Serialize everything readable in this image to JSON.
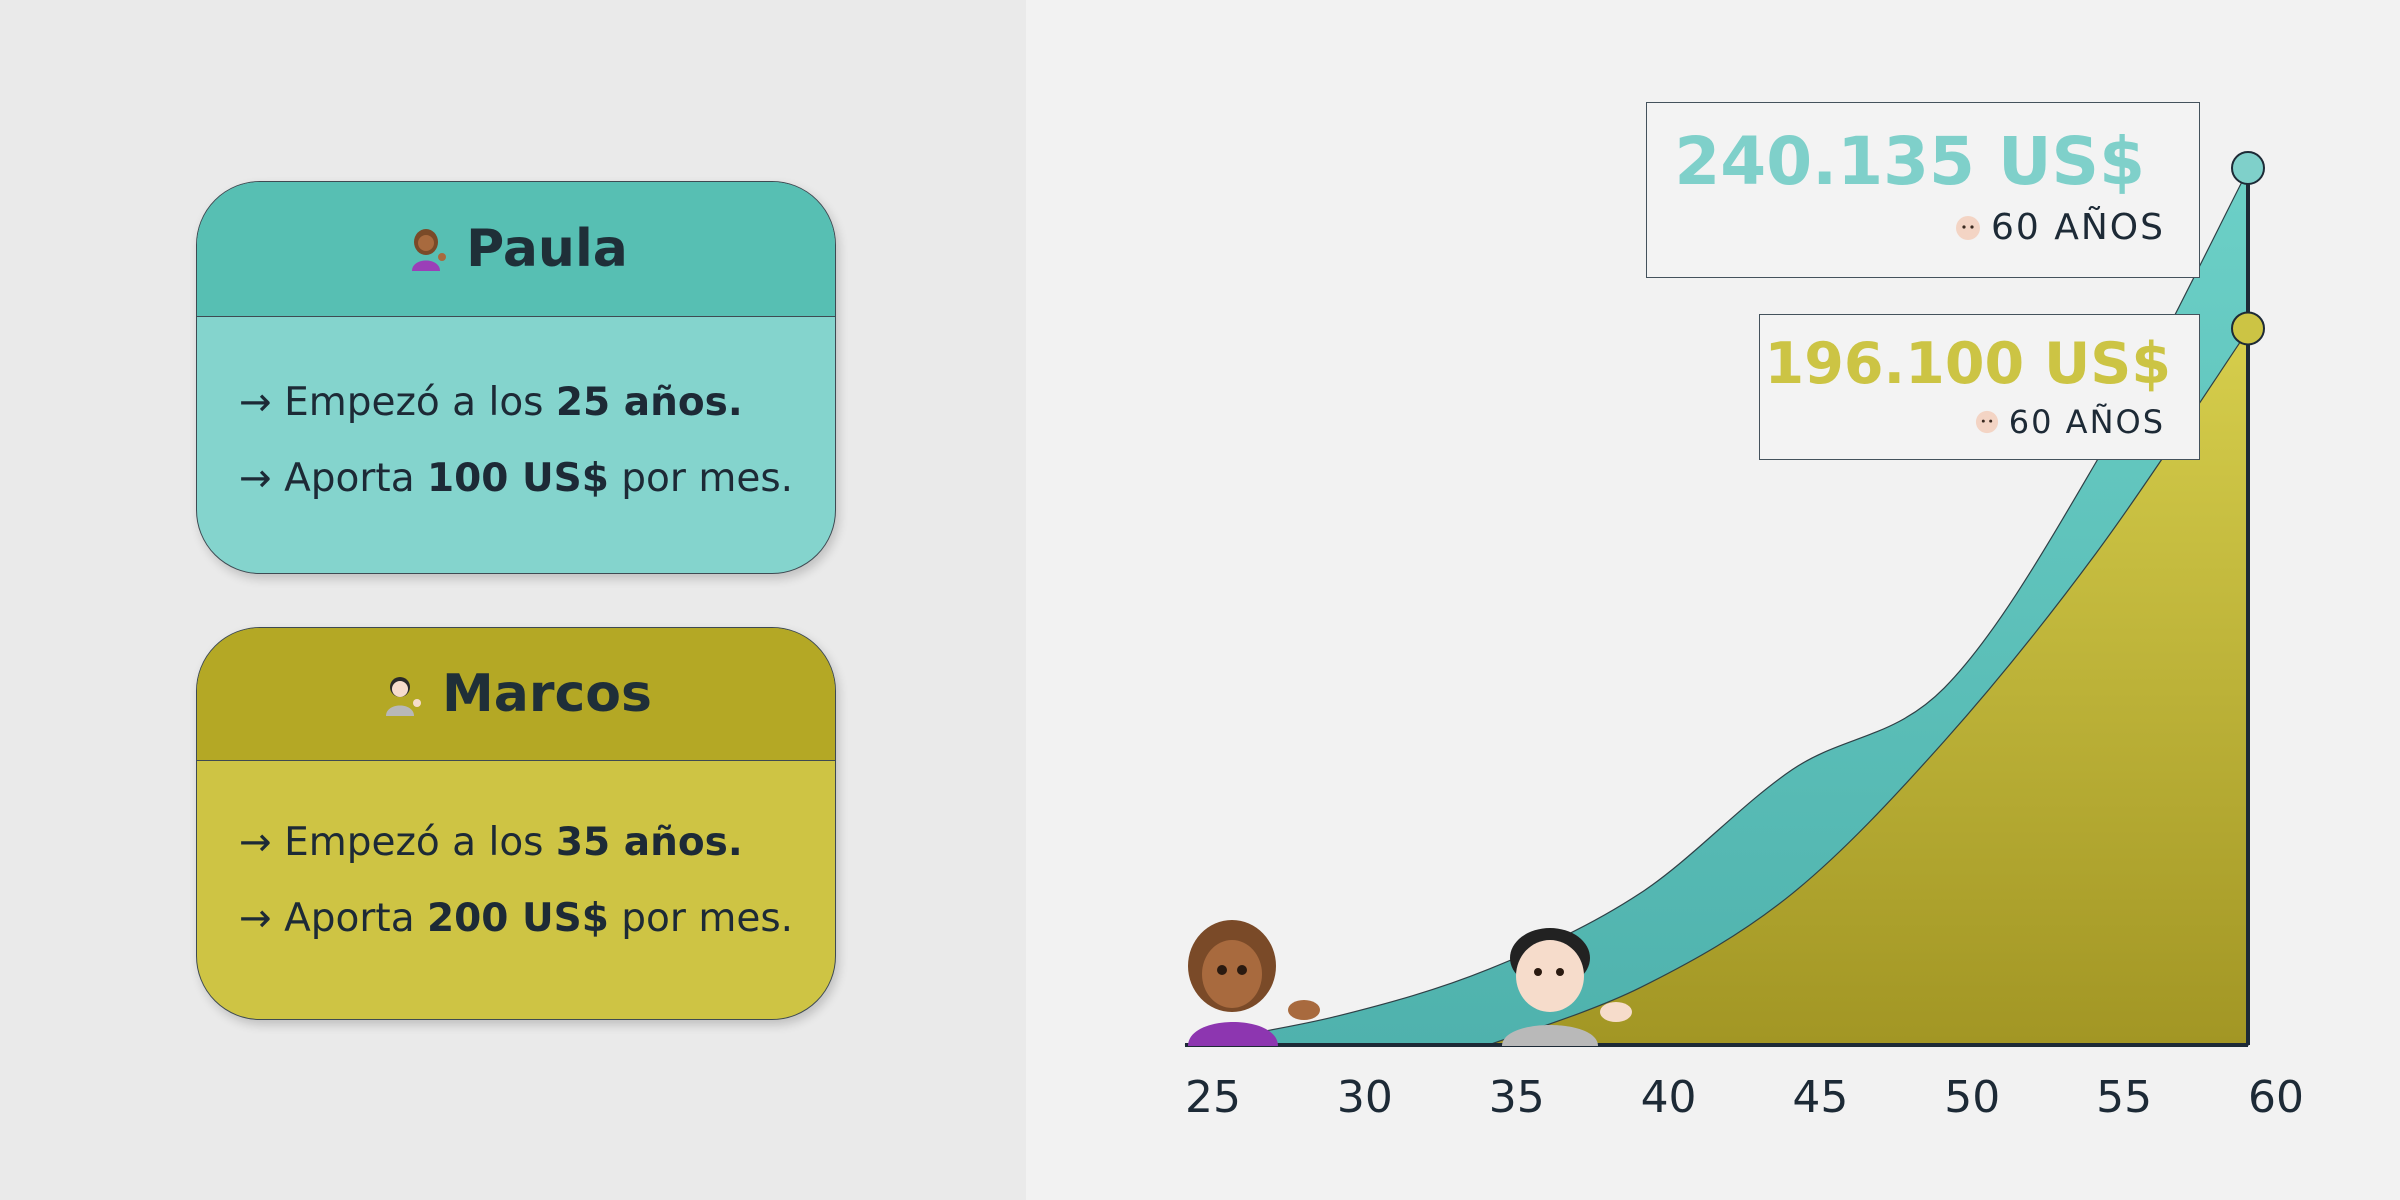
{
  "cards": {
    "paula": {
      "name": "Paula",
      "icon": "woman-shrugging-icon",
      "line1_prefix": "→ Empezó a los ",
      "line1_bold": "25 años.",
      "line2_prefix": "→ Aporta ",
      "line2_bold": "100 US$",
      "line2_suffix": " por mes."
    },
    "marcos": {
      "name": "Marcos",
      "icon": "person-shrugging-icon",
      "line1_prefix": "→ Empezó a los ",
      "line1_bold": "35 años.",
      "line2_prefix": "→ Aporta ",
      "line2_bold": "200 US$",
      "line2_suffix": " por mes."
    }
  },
  "callouts": {
    "paula": {
      "amount": "240.135 US$",
      "age": "60 AÑOS",
      "icon": "older-person-icon"
    },
    "marcos": {
      "amount": "196.100 US$",
      "age": "60 AÑOS",
      "icon": "older-person-icon"
    }
  },
  "colors": {
    "paula": "#57bfb3",
    "paula_light": "#84d4cd",
    "marcos": "#b4a825",
    "marcos_light": "#cec444",
    "text": "#1d2a36"
  },
  "chart_data": {
    "type": "area",
    "x_ticks": [
      25,
      30,
      35,
      40,
      45,
      50,
      55,
      60
    ],
    "xlim": [
      25,
      60
    ],
    "ylim": [
      0,
      240135
    ],
    "series": [
      {
        "name": "Paula",
        "color": "#57bfb3",
        "start_age": 25,
        "end_age": 60,
        "end_value": 240135,
        "x": [
          25,
          30,
          35,
          40,
          45,
          50,
          55,
          60
        ],
        "y": [
          0,
          7900,
          20800,
          41700,
          75600,
          98000,
          160000,
          240135
        ]
      },
      {
        "name": "Marcos",
        "color": "#b4a825",
        "start_age": 35,
        "end_age": 60,
        "end_value": 196100,
        "x": [
          35,
          40,
          45,
          50,
          55,
          60
        ],
        "y": [
          0,
          15800,
          41600,
          83400,
          135000,
          196100
        ]
      }
    ]
  }
}
